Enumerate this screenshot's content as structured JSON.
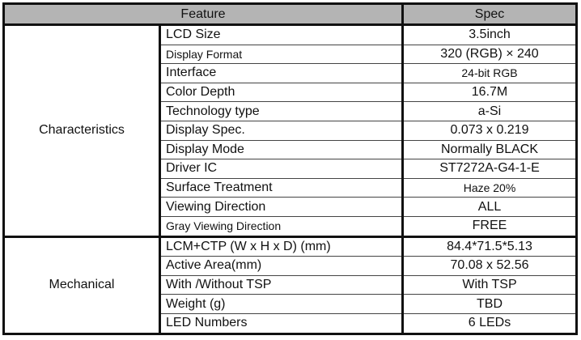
{
  "header": {
    "feature": "Feature",
    "spec": "Spec"
  },
  "groups": [
    {
      "name": "Characteristics",
      "rows": [
        {
          "feature": "LCD Size",
          "spec": "3.5inch"
        },
        {
          "feature": "Display Format",
          "spec": "320 (RGB) × 240"
        },
        {
          "feature": "Interface",
          "spec": "24-bit RGB"
        },
        {
          "feature": "Color Depth",
          "spec": "16.7M"
        },
        {
          "feature": "Technology type",
          "spec": "a-Si"
        },
        {
          "feature": "Display Spec.",
          "spec": "0.073 x 0.219"
        },
        {
          "feature": "Display Mode",
          "spec": "Normally BLACK"
        },
        {
          "feature": "Driver IC",
          "spec": "ST7272A-G4-1-E"
        },
        {
          "feature": "Surface Treatment",
          "spec": "Haze 20%"
        },
        {
          "feature": "Viewing Direction",
          "spec": "ALL"
        },
        {
          "feature": "Gray Viewing Direction",
          "spec": "FREE"
        }
      ]
    },
    {
      "name": "Mechanical",
      "rows": [
        {
          "feature": "LCM+CTP (W x H x D) (mm)",
          "spec": "84.4*71.5*5.13"
        },
        {
          "feature": "Active Area(mm)",
          "spec": "70.08 x 52.56"
        },
        {
          "feature": "With /Without TSP",
          "spec": "With TSP"
        },
        {
          "feature": "Weight (g)",
          "spec": "TBD"
        },
        {
          "feature": "LED Numbers",
          "spec": "6 LEDs"
        }
      ]
    }
  ]
}
